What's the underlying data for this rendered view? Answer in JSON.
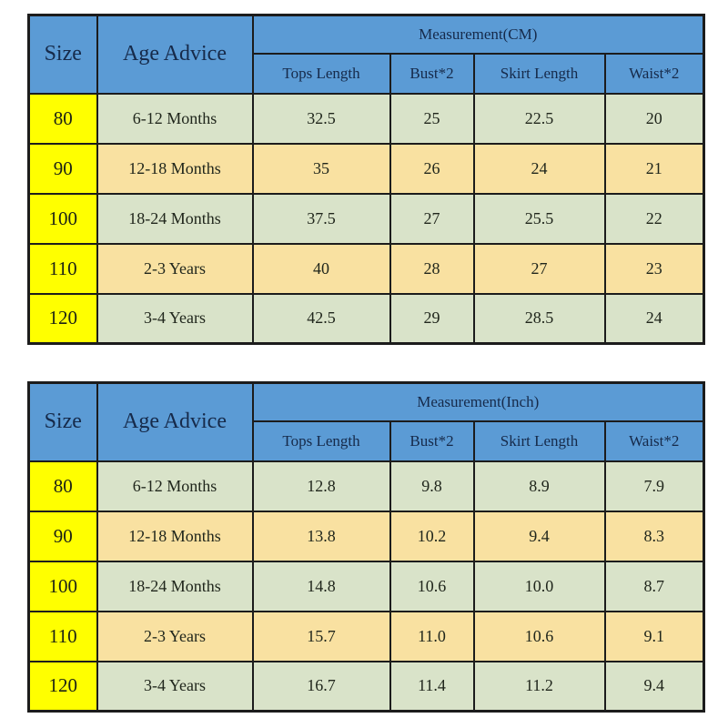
{
  "colors": {
    "header_blue": "#5b9bd5",
    "size_yellow": "#ffff00",
    "row_green": "#d9e3c9",
    "row_tan": "#f9e1a1",
    "border": "#1c1c1c",
    "header_text": "#162a4a",
    "body_text": "#20261c"
  },
  "chart_data": [
    {
      "type": "table",
      "title": "Measurement(CM)",
      "corner_headers": {
        "size": "Size",
        "age": "Age Advice"
      },
      "measure_columns": [
        "Tops Length",
        "Bust*2",
        "Skirt Length",
        "Waist*2"
      ],
      "rows": [
        {
          "size": "80",
          "age": "6-12 Months",
          "values": [
            "32.5",
            "25",
            "22.5",
            "20"
          ]
        },
        {
          "size": "90",
          "age": "12-18 Months",
          "values": [
            "35",
            "26",
            "24",
            "21"
          ]
        },
        {
          "size": "100",
          "age": "18-24 Months",
          "values": [
            "37.5",
            "27",
            "25.5",
            "22"
          ]
        },
        {
          "size": "110",
          "age": "2-3 Years",
          "values": [
            "40",
            "28",
            "27",
            "23"
          ]
        },
        {
          "size": "120",
          "age": "3-4 Years",
          "values": [
            "42.5",
            "29",
            "28.5",
            "24"
          ]
        }
      ]
    },
    {
      "type": "table",
      "title": "Measurement(Inch)",
      "corner_headers": {
        "size": "Size",
        "age": "Age Advice"
      },
      "measure_columns": [
        "Tops Length",
        "Bust*2",
        "Skirt Length",
        "Waist*2"
      ],
      "rows": [
        {
          "size": "80",
          "age": "6-12 Months",
          "values": [
            "12.8",
            "9.8",
            "8.9",
            "7.9"
          ]
        },
        {
          "size": "90",
          "age": "12-18 Months",
          "values": [
            "13.8",
            "10.2",
            "9.4",
            "8.3"
          ]
        },
        {
          "size": "100",
          "age": "18-24 Months",
          "values": [
            "14.8",
            "10.6",
            "10.0",
            "8.7"
          ]
        },
        {
          "size": "110",
          "age": "2-3 Years",
          "values": [
            "15.7",
            "11.0",
            "10.6",
            "9.1"
          ]
        },
        {
          "size": "120",
          "age": "3-4 Years",
          "values": [
            "16.7",
            "11.4",
            "11.2",
            "9.4"
          ]
        }
      ]
    }
  ]
}
